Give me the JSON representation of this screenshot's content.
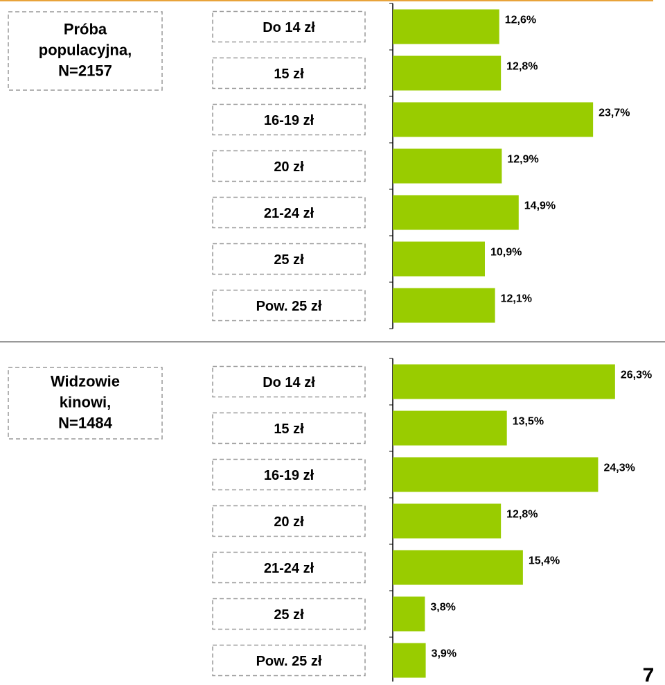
{
  "chart_data": [
    {
      "type": "bar",
      "orientation": "horizontal",
      "title": [
        "Próba",
        "populacyjna,",
        "N=2157"
      ],
      "categories": [
        "Do 14 zł",
        "15 zł",
        "16-19 zł",
        "20 zł",
        "21-24 zł",
        "25 zł",
        "Pow. 25 zł"
      ],
      "values": [
        12.6,
        12.8,
        23.7,
        12.9,
        14.9,
        10.9,
        12.1
      ],
      "value_labels": [
        "12,6%",
        "12,8%",
        "23,7%",
        "12,9%",
        "14,9%",
        "10,9%",
        "12,1%"
      ],
      "color": "#99cc00",
      "xlim": [
        0,
        30
      ]
    },
    {
      "type": "bar",
      "orientation": "horizontal",
      "title": [
        "Widzowie",
        "kinowi,",
        "N=1484"
      ],
      "categories": [
        "Do 14 zł",
        "15 zł",
        "16-19 zł",
        "20 zł",
        "21-24 zł",
        "25 zł",
        "Pow. 25 zł"
      ],
      "values": [
        26.3,
        13.5,
        24.3,
        12.8,
        15.4,
        3.8,
        3.9
      ],
      "value_labels": [
        "26,3%",
        "13,5%",
        "24,3%",
        "12,8%",
        "15,4%",
        "3,8%",
        "3,9%"
      ],
      "color": "#99cc00",
      "xlim": [
        0,
        30
      ]
    }
  ],
  "page_number": "7"
}
